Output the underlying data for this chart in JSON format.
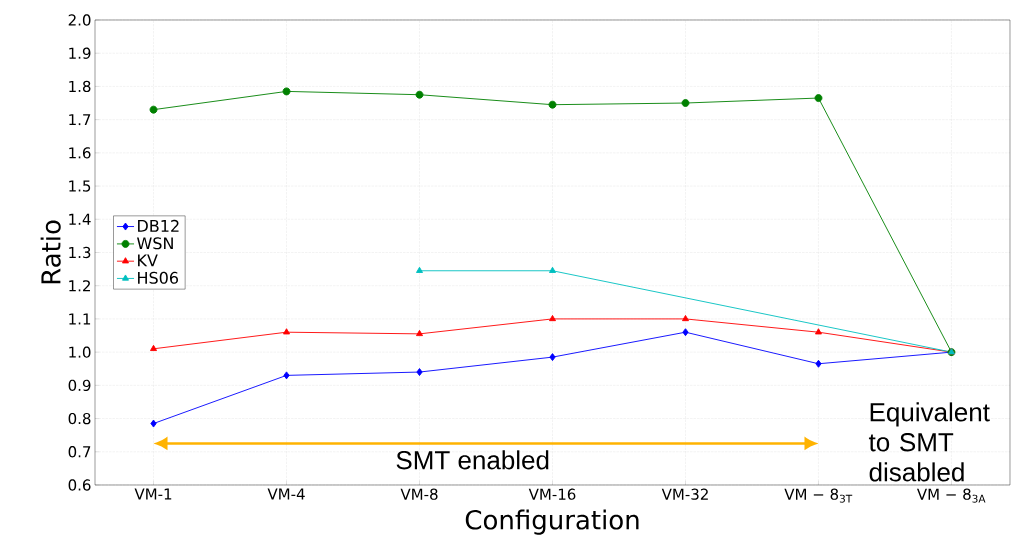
{
  "chart_data": {
    "type": "line",
    "xlabel": "Configuration",
    "ylabel": "Ratio",
    "categories": [
      "VM-1",
      "VM-4",
      "VM-8",
      "VM-16",
      "VM-32",
      "VM − 8$_{3T}$",
      "VM − 8$_{3A}$"
    ],
    "series": [
      {
        "name": "DB12",
        "color": "#0000ff",
        "marker": "diamond",
        "values": [
          0.785,
          0.93,
          0.94,
          0.985,
          1.06,
          0.965,
          1.0
        ]
      },
      {
        "name": "WSN",
        "color": "#008000",
        "marker": "circle",
        "values": [
          1.73,
          1.785,
          1.775,
          1.745,
          1.75,
          1.765,
          1.0
        ]
      },
      {
        "name": "KV",
        "color": "#ff0000",
        "marker": "triangle",
        "values": [
          1.01,
          1.06,
          1.055,
          1.1,
          1.1,
          1.06,
          1.0
        ]
      },
      {
        "name": "HS06",
        "color": "#00bfbf",
        "marker": "triangle",
        "values": [
          null,
          null,
          1.245,
          1.245,
          null,
          null,
          1.0
        ]
      }
    ],
    "ylim": [
      0.6,
      2.0
    ],
    "yticks": [
      0.6,
      0.7,
      0.8,
      0.9,
      {
        "value": 1.0,
        "label": "1.0"
      },
      1.1,
      1.2,
      1.3,
      1.4,
      1.5,
      1.6,
      1.7,
      1.8,
      1.9,
      {
        "value": 2.0,
        "label": "2.0"
      }
    ],
    "grid": true,
    "legend": "left",
    "line_style": "solid",
    "annotations": [
      "SMT enabled",
      "Equivalent to SMT disabled"
    ]
  }
}
